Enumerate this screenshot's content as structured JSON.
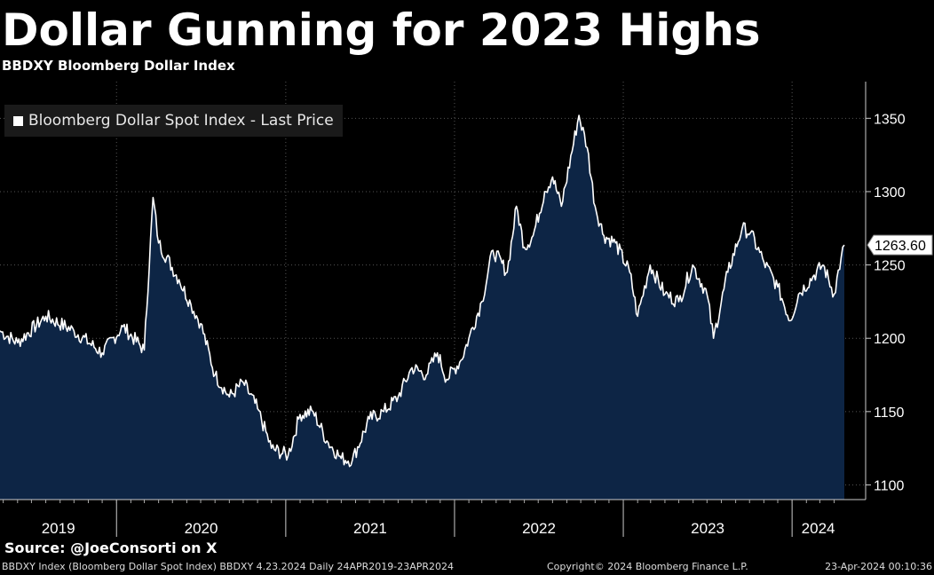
{
  "title": "Dollar Gunning for 2023 Highs",
  "subtitle": "BBDXY Bloomberg Dollar Index",
  "legend": "Bloomberg Dollar Spot Index - Last Price",
  "source": "Source: @JoeConsorti on X",
  "footer": {
    "left": "BBDXY Index (Bloomberg Dollar Spot Index) BBDXY 4.23.2024  Daily 24APR2019-23APR2024",
    "mid": "Copyright© 2024 Bloomberg Finance L.P.",
    "right": "23-Apr-2024 00:10:36"
  },
  "colors": {
    "background": "#000000",
    "line": "#ffffff",
    "area": "#0d2545",
    "grid": "#555555"
  },
  "chart_data": {
    "type": "area",
    "title": "Dollar Gunning for 2023 Highs",
    "subtitle": "BBDXY Bloomberg Dollar Index",
    "series": [
      {
        "name": "Bloomberg Dollar Spot Index - Last Price",
        "x": [
          "2019-04-24",
          "2019-06-01",
          "2019-08-01",
          "2019-10-01",
          "2019-12-01",
          "2020-01-15",
          "2020-03-01",
          "2020-03-20",
          "2020-04-01",
          "2020-05-15",
          "2020-06-10",
          "2020-07-01",
          "2020-08-01",
          "2020-09-01",
          "2020-10-01",
          "2020-11-01",
          "2020-12-01",
          "2021-01-06",
          "2021-02-01",
          "2021-03-01",
          "2021-03-31",
          "2021-05-01",
          "2021-05-25",
          "2021-07-01",
          "2021-08-01",
          "2021-09-01",
          "2021-10-01",
          "2021-11-01",
          "2021-11-25",
          "2021-12-15",
          "2022-01-15",
          "2022-02-01",
          "2022-03-01",
          "2022-03-25",
          "2022-04-25",
          "2022-05-15",
          "2022-06-01",
          "2022-06-20",
          "2022-07-15",
          "2022-08-01",
          "2022-08-20",
          "2022-09-27",
          "2022-10-15",
          "2022-11-01",
          "2022-11-20",
          "2022-12-15",
          "2023-01-15",
          "2023-02-01",
          "2023-02-28",
          "2023-04-01",
          "2023-05-01",
          "2023-05-31",
          "2023-07-01",
          "2023-07-15",
          "2023-08-15",
          "2023-09-15",
          "2023-10-03",
          "2023-11-01",
          "2023-12-01",
          "2023-12-28",
          "2024-01-15",
          "2024-02-15",
          "2024-03-08",
          "2024-04-01",
          "2024-04-16",
          "2024-04-23"
        ],
        "values": [
          1205,
          1197,
          1215,
          1205,
          1190,
          1208,
          1192,
          1296,
          1265,
          1240,
          1223,
          1210,
          1175,
          1160,
          1170,
          1152,
          1125,
          1120,
          1148,
          1150,
          1130,
          1118,
          1117,
          1145,
          1150,
          1160,
          1180,
          1175,
          1190,
          1172,
          1185,
          1200,
          1225,
          1260,
          1245,
          1290,
          1262,
          1270,
          1300,
          1310,
          1290,
          1352,
          1330,
          1290,
          1270,
          1265,
          1245,
          1215,
          1250,
          1230,
          1225,
          1250,
          1230,
          1200,
          1245,
          1275,
          1272,
          1252,
          1235,
          1212,
          1230,
          1242,
          1250,
          1230,
          1255,
          1263.6
        ]
      }
    ],
    "last_value_label": "1263.60",
    "x_tick_labels": [
      "2019",
      "2020",
      "2021",
      "2022",
      "2023",
      "2024"
    ],
    "y_ticks": [
      1100,
      1150,
      1200,
      1250,
      1300,
      1350
    ],
    "xlim": [
      "2019-04-24",
      "2024-04-23"
    ],
    "ylim": [
      1090,
      1375
    ],
    "grid": true,
    "legend_position": "top-left",
    "y_axis_side": "right"
  }
}
